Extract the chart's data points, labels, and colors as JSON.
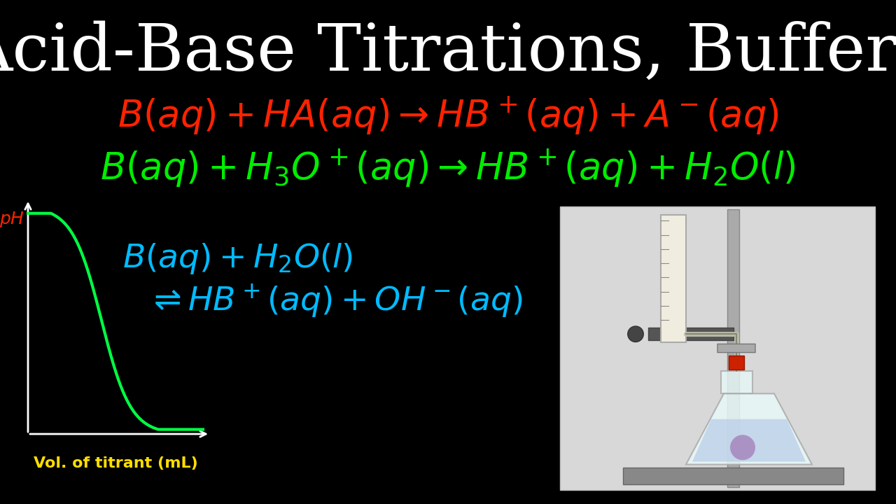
{
  "title": "Acid-Base Titrations, Buffers",
  "title_color": "#ffffff",
  "title_fontsize": 68,
  "background_color": "#000000",
  "eq1_color": "#ff2200",
  "eq2_color": "#00ee00",
  "eq3_color": "#00bbff",
  "ph_label_color": "#ff2200",
  "vol_label_color": "#ffdd00",
  "curve_color": "#00ff44",
  "vol_label": "Vol. of titrant (mL)",
  "ph_label": "pH",
  "apparatus_bg": "#e8e8e8"
}
